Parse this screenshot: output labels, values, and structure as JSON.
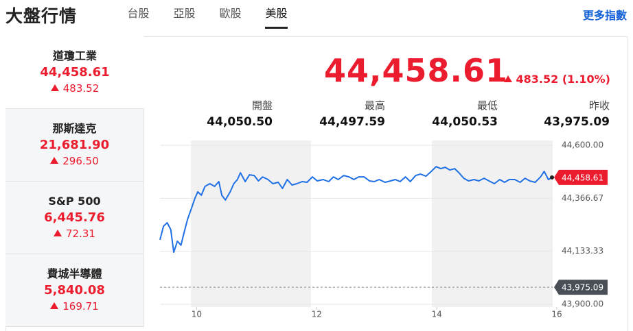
{
  "header": {
    "title": "大盤行情",
    "tabs": [
      "台股",
      "亞股",
      "歐股",
      "美股"
    ],
    "active_tab": 3,
    "more_link": "更多指數"
  },
  "indices": [
    {
      "name": "道瓊工業",
      "value": "44,458.61",
      "change": "483.52"
    },
    {
      "name": "那斯達克",
      "value": "21,681.90",
      "change": "296.50"
    },
    {
      "name": "S&P 500",
      "value": "6,445.76",
      "change": "72.31"
    },
    {
      "name": "費城半導體",
      "value": "5,840.08",
      "change": "169.71"
    }
  ],
  "selected_index": 0,
  "quote": {
    "price": "44,458.61",
    "change": "483.52",
    "change_pct": "(1.10%)",
    "stats": [
      {
        "label": "開盤",
        "value": "44,050.50"
      },
      {
        "label": "最高",
        "value": "44,497.59"
      },
      {
        "label": "最低",
        "value": "44,050.53"
      },
      {
        "label": "昨收",
        "value": "43,975.09"
      }
    ]
  },
  "chart_data": {
    "type": "line",
    "color": "#1f6fe5",
    "x": [
      9.39,
      9.45,
      9.51,
      9.57,
      9.62,
      9.68,
      9.74,
      9.79,
      9.85,
      9.91,
      9.97,
      10.02,
      10.08,
      10.14,
      10.22,
      10.3,
      10.37,
      10.42,
      10.48,
      10.56,
      10.62,
      10.68,
      10.73,
      10.81,
      10.88,
      10.96,
      11.03,
      11.1,
      11.19,
      11.27,
      11.36,
      11.43,
      11.51,
      11.59,
      11.67,
      11.76,
      11.84,
      11.93,
      12.01,
      12.11,
      12.2,
      12.28,
      12.36,
      12.45,
      12.54,
      12.62,
      12.7,
      12.79,
      12.88,
      12.96,
      13.04,
      13.14,
      13.23,
      13.31,
      13.39,
      13.48,
      13.56,
      13.65,
      13.73,
      13.82,
      13.91,
      13.99,
      14.07,
      14.14,
      14.22,
      14.3,
      14.37,
      14.45,
      14.53,
      14.62,
      14.7,
      14.79,
      14.87,
      14.96,
      15.05,
      15.13,
      15.21,
      15.3,
      15.39,
      15.47,
      15.55,
      15.64,
      15.73,
      15.79,
      15.86,
      15.92
    ],
    "values": [
      44184,
      44244,
      44259,
      44229,
      44129,
      44178,
      44160,
      44214,
      44274,
      44319,
      44365,
      44395,
      44380,
      44419,
      44431,
      44419,
      44440,
      44380,
      44359,
      44395,
      44431,
      44449,
      44479,
      44440,
      44470,
      44467,
      44443,
      44461,
      44449,
      44431,
      44437,
      44410,
      44449,
      44425,
      44431,
      44440,
      44437,
      44461,
      44443,
      44449,
      44440,
      44461,
      44449,
      44467,
      44461,
      44449,
      44461,
      44461,
      44443,
      44440,
      44449,
      44437,
      44443,
      44449,
      44440,
      44461,
      44440,
      44467,
      44473,
      44464,
      44485,
      44506,
      44497,
      44503,
      44491,
      44497,
      44479,
      44455,
      44443,
      44449,
      44443,
      44455,
      44443,
      44431,
      44449,
      44437,
      44449,
      44449,
      44437,
      44455,
      44443,
      44437,
      44461,
      44485,
      44449,
      44458.61
    ],
    "xlim": [
      9.39,
      16
    ],
    "xticks": [
      10,
      12,
      14,
      16
    ],
    "ylim": [
      43900,
      44600
    ],
    "yticks": [
      {
        "value": 44600,
        "label": "44,600.00"
      },
      {
        "value": 44366.67,
        "label": "44,366.67"
      },
      {
        "value": 44133.33,
        "label": "44,133.33"
      },
      {
        "value": 43900,
        "label": "43,900.00"
      }
    ],
    "last": {
      "value": 44458.61,
      "label": "44,458.61"
    },
    "prev_close": {
      "value": 43975.09,
      "label": "43,975.09"
    },
    "grid": true
  }
}
